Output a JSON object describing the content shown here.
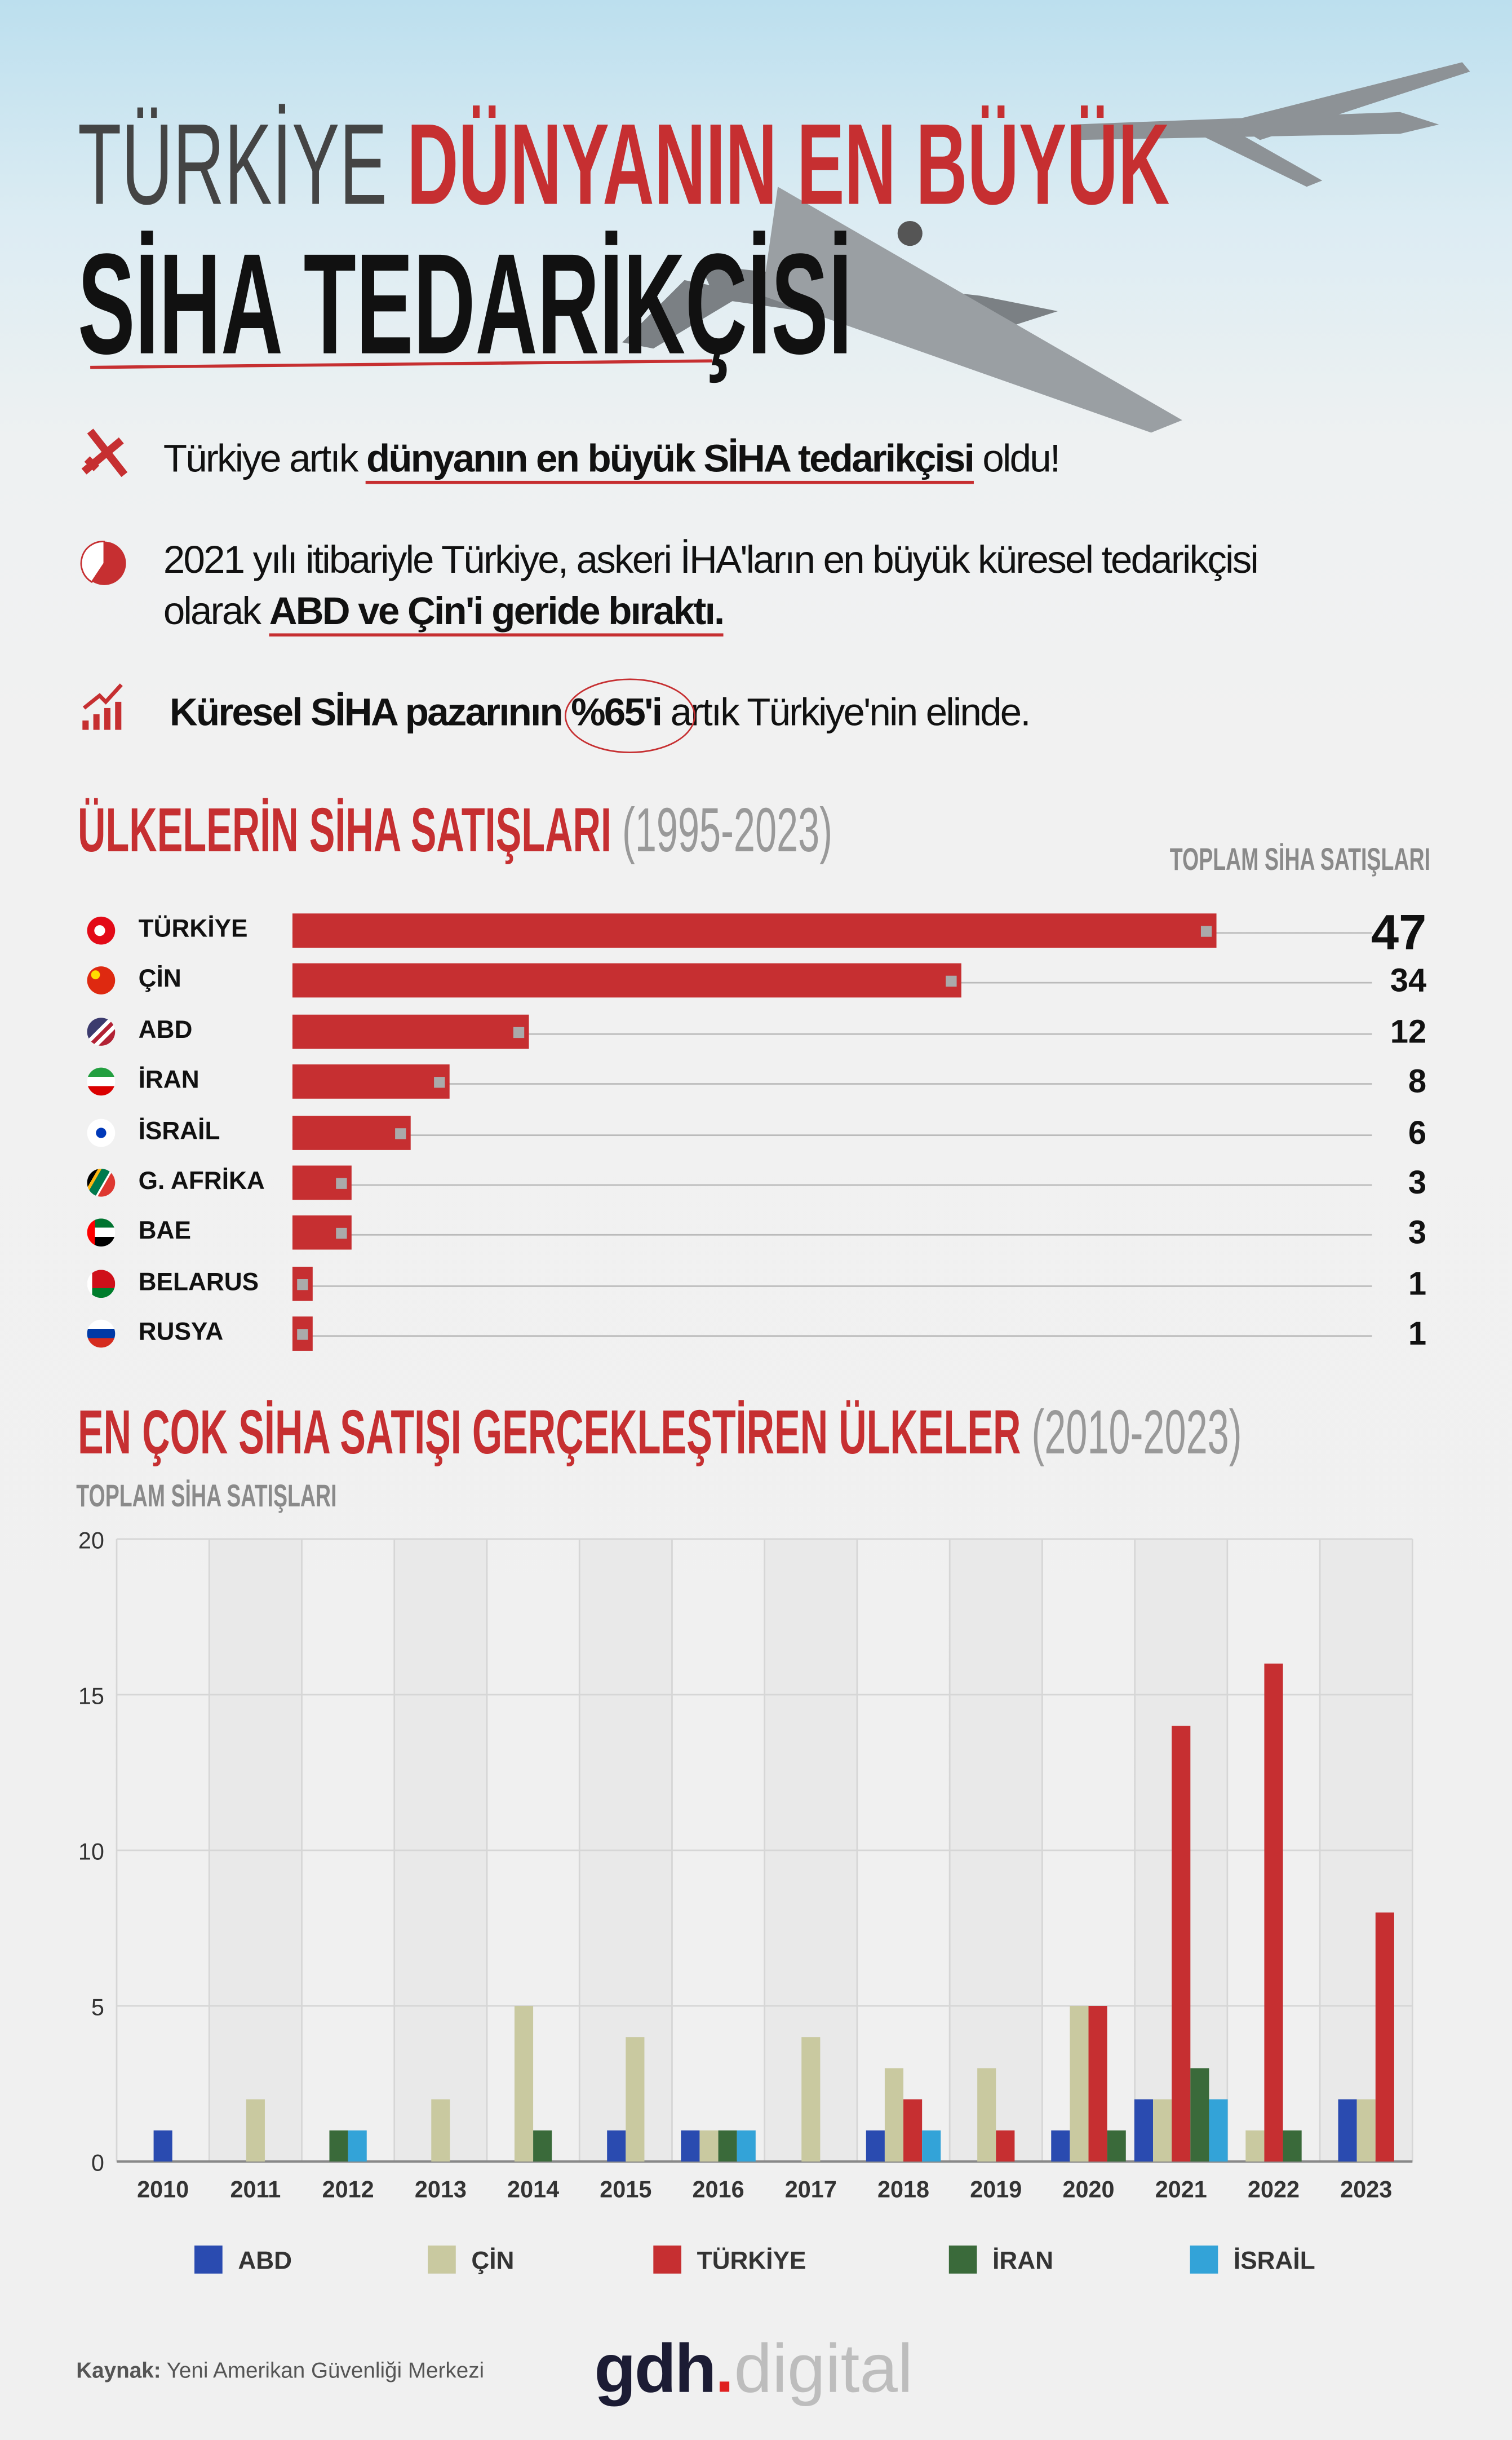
{
  "header": {
    "title_gray": "TÜRKİYE",
    "title_red": "DÜNYANIN EN BÜYÜK",
    "title_line2": "SİHA TEDARİKÇİSİ"
  },
  "bullets": [
    {
      "icon": "drone-icon",
      "pre": "Türkiye artık ",
      "bold": "dünyanın en büyük SİHA tedarikçisi",
      "post": " oldu!"
    },
    {
      "icon": "pie-chart-icon",
      "line1": "2021 yılı itibariyle Türkiye, askeri İHA'ların en büyük küresel tedarikçisi",
      "pre": "olarak ",
      "bold": "ABD ve Çin'i geride bıraktı."
    },
    {
      "icon": "growth-chart-icon",
      "bold": "Küresel SİHA pazarının ",
      "circled": "%65'i",
      "post": " artık Türkiye'nin elinde."
    }
  ],
  "section1": {
    "title": "ÜLKELERİN SİHA SATIŞLARI",
    "years": "(1995-2023)",
    "column_label": "TOPLAM SİHA SATIŞLARI"
  },
  "section2": {
    "title": "EN ÇOK SİHA SATIŞI GERÇEKLEŞTİREN ÜLKELER",
    "years": "(2010-2023)"
  },
  "colors": {
    "red": "#c62f31",
    "abd": "#2a4bb0",
    "cin": "#c9c9a0",
    "turkiye": "#c62f31",
    "iran": "#3a6a3a",
    "israil": "#33a3d8"
  },
  "chart_data": [
    {
      "type": "bar",
      "orientation": "horizontal",
      "title": "ÜLKELERİN SİHA SATIŞLARI (1995-2023)",
      "ylabel": "TOPLAM SİHA SATIŞLARI",
      "categories": [
        "TÜRKİYE",
        "ÇİN",
        "ABD",
        "İRAN",
        "İSRAİL",
        "G. AFRİKA",
        "BAE",
        "BELARUS",
        "RUSYA"
      ],
      "values": [
        47,
        34,
        12,
        8,
        6,
        3,
        3,
        1,
        1
      ],
      "xlim": [
        0,
        47
      ]
    },
    {
      "type": "bar",
      "title": "EN ÇOK SİHA SATIŞI GERÇEKLEŞTİREN ÜLKELER (2010-2023)",
      "ylabel": "TOPLAM SİHA SATIŞLARI",
      "xlabel": "",
      "categories": [
        "2010",
        "2011",
        "2012",
        "2013",
        "2014",
        "2015",
        "2016",
        "2017",
        "2018",
        "2019",
        "2020",
        "2021",
        "2022",
        "2023"
      ],
      "ylim": [
        0,
        20
      ],
      "yticks": [
        0,
        5,
        10,
        15,
        20
      ],
      "grid": true,
      "legend": "bottom",
      "series": [
        {
          "name": "ABD",
          "values": [
            1,
            0,
            0,
            0,
            0,
            1,
            1,
            0,
            1,
            0,
            1,
            2,
            0,
            2
          ]
        },
        {
          "name": "ÇİN",
          "values": [
            0,
            2,
            0,
            2,
            5,
            4,
            1,
            4,
            3,
            3,
            5,
            2,
            1,
            2
          ]
        },
        {
          "name": "TÜRKİYE",
          "values": [
            0,
            0,
            0,
            0,
            0,
            0,
            0,
            0,
            2,
            1,
            5,
            14,
            16,
            8
          ]
        },
        {
          "name": "İRAN",
          "values": [
            0,
            0,
            1,
            0,
            1,
            0,
            1,
            0,
            0,
            0,
            1,
            3,
            1,
            0
          ]
        },
        {
          "name": "İSRAİL",
          "values": [
            0,
            0,
            1,
            0,
            0,
            0,
            1,
            0,
            1,
            0,
            0,
            2,
            0,
            0
          ]
        }
      ]
    }
  ],
  "footer": {
    "source_label": "Kaynak:",
    "source_text": " Yeni Amerikan Güvenliği Merkezi",
    "logo_text": "gdh digital"
  }
}
